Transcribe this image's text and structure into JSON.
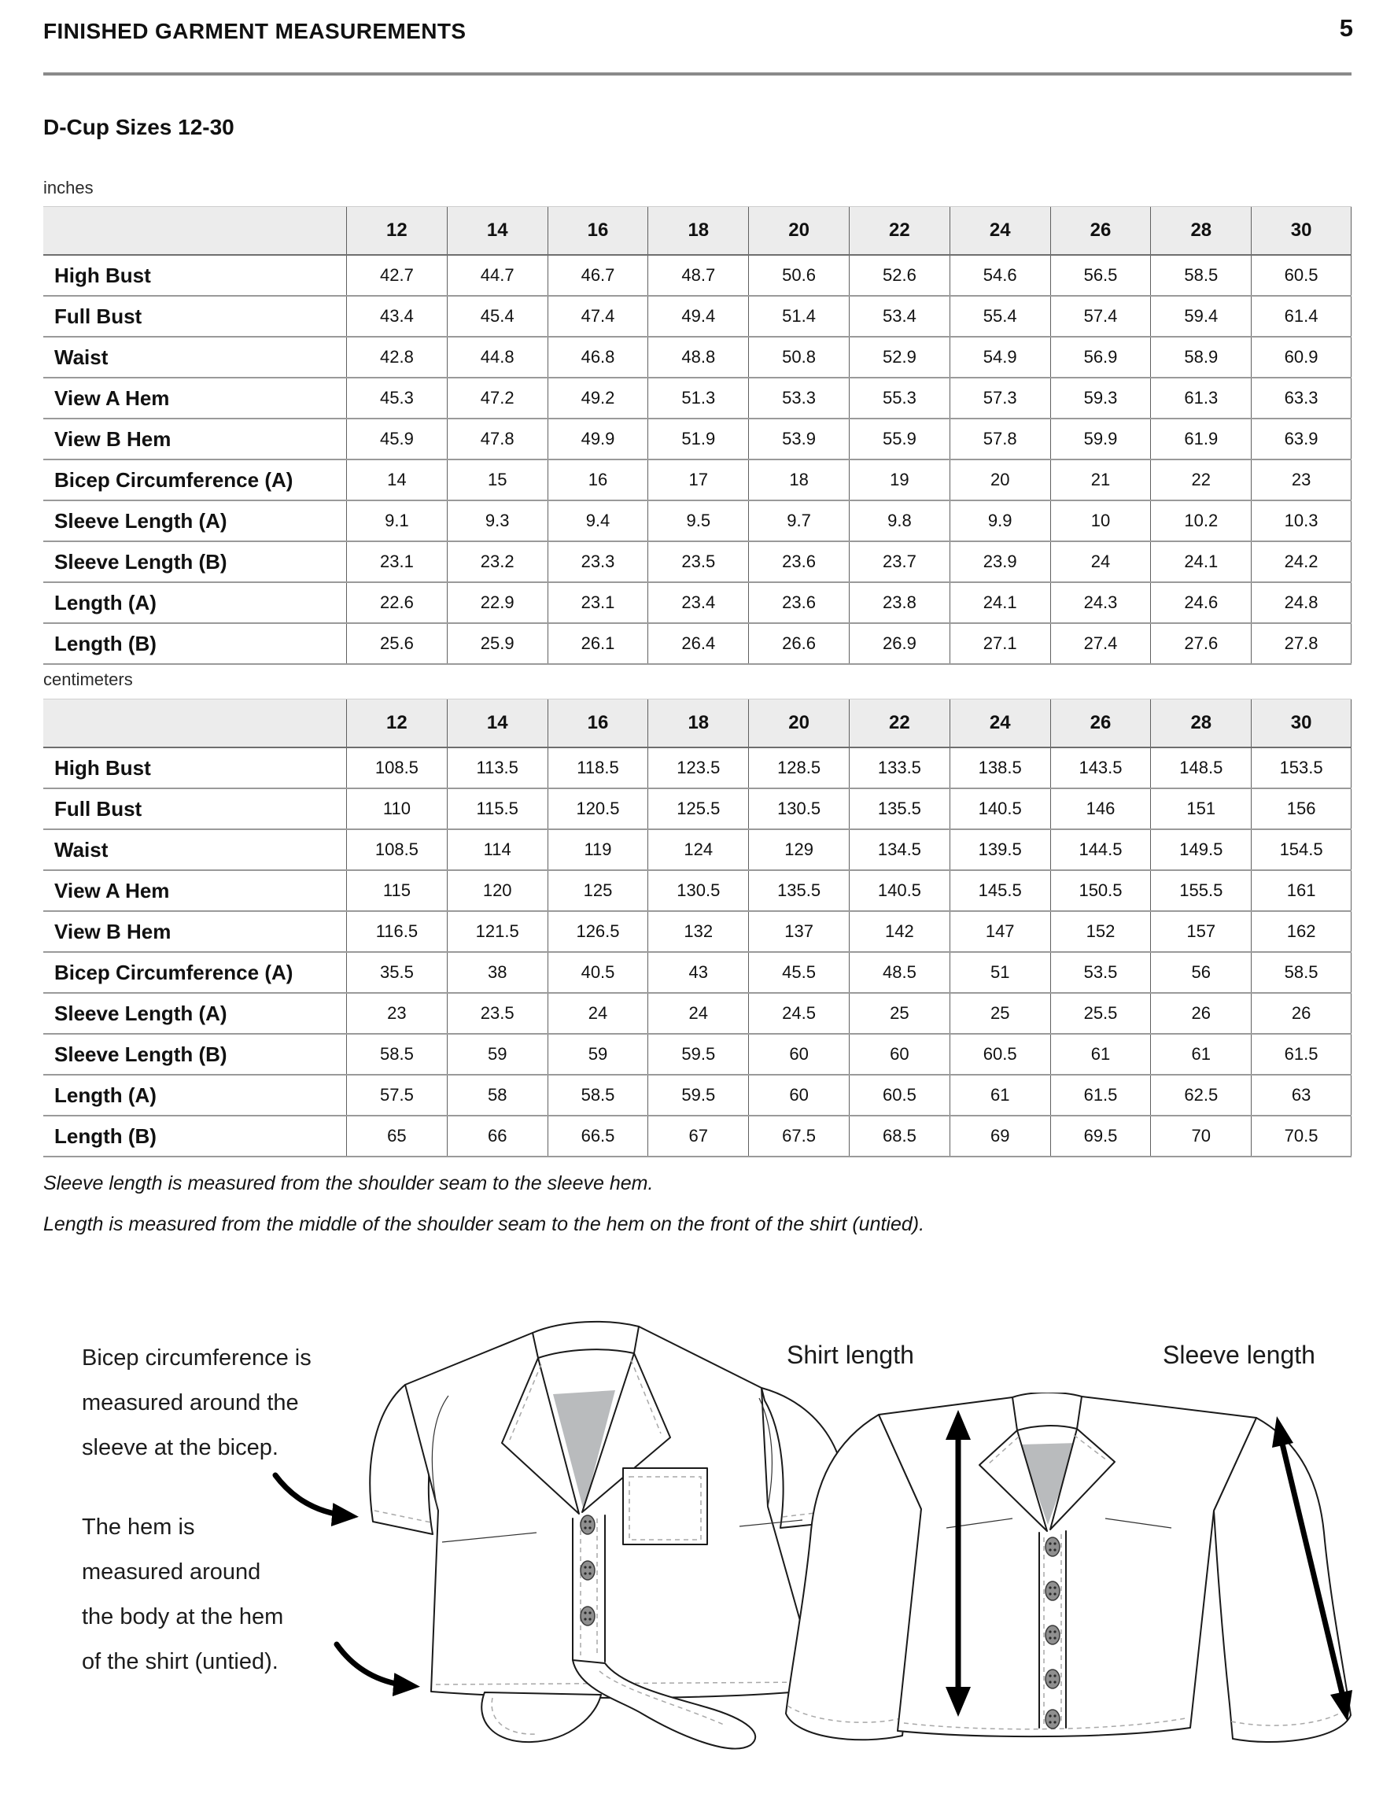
{
  "page": {
    "title": "FINISHED GARMENT MEASUREMENTS",
    "page_number": "5",
    "section_title": "D-Cup Sizes 12-30"
  },
  "tables": [
    {
      "unit_label": "inches",
      "sizes": [
        "12",
        "14",
        "16",
        "18",
        "20",
        "22",
        "24",
        "26",
        "28",
        "30"
      ],
      "rows": [
        {
          "label": "High Bust",
          "values": [
            "42.7",
            "44.7",
            "46.7",
            "48.7",
            "50.6",
            "52.6",
            "54.6",
            "56.5",
            "58.5",
            "60.5"
          ]
        },
        {
          "label": "Full Bust",
          "values": [
            "43.4",
            "45.4",
            "47.4",
            "49.4",
            "51.4",
            "53.4",
            "55.4",
            "57.4",
            "59.4",
            "61.4"
          ]
        },
        {
          "label": "Waist",
          "values": [
            "42.8",
            "44.8",
            "46.8",
            "48.8",
            "50.8",
            "52.9",
            "54.9",
            "56.9",
            "58.9",
            "60.9"
          ]
        },
        {
          "label": "View A Hem",
          "values": [
            "45.3",
            "47.2",
            "49.2",
            "51.3",
            "53.3",
            "55.3",
            "57.3",
            "59.3",
            "61.3",
            "63.3"
          ]
        },
        {
          "label": "View B Hem",
          "values": [
            "45.9",
            "47.8",
            "49.9",
            "51.9",
            "53.9",
            "55.9",
            "57.8",
            "59.9",
            "61.9",
            "63.9"
          ]
        },
        {
          "label": "Bicep Circumference (A)",
          "values": [
            "14",
            "15",
            "16",
            "17",
            "18",
            "19",
            "20",
            "21",
            "22",
            "23"
          ]
        },
        {
          "label": "Sleeve Length (A)",
          "values": [
            "9.1",
            "9.3",
            "9.4",
            "9.5",
            "9.7",
            "9.8",
            "9.9",
            "10",
            "10.2",
            "10.3"
          ]
        },
        {
          "label": "Sleeve Length (B)",
          "values": [
            "23.1",
            "23.2",
            "23.3",
            "23.5",
            "23.6",
            "23.7",
            "23.9",
            "24",
            "24.1",
            "24.2"
          ]
        },
        {
          "label": "Length (A)",
          "values": [
            "22.6",
            "22.9",
            "23.1",
            "23.4",
            "23.6",
            "23.8",
            "24.1",
            "24.3",
            "24.6",
            "24.8"
          ]
        },
        {
          "label": "Length (B)",
          "values": [
            "25.6",
            "25.9",
            "26.1",
            "26.4",
            "26.6",
            "26.9",
            "27.1",
            "27.4",
            "27.6",
            "27.8"
          ]
        }
      ]
    },
    {
      "unit_label": "centimeters",
      "sizes": [
        "12",
        "14",
        "16",
        "18",
        "20",
        "22",
        "24",
        "26",
        "28",
        "30"
      ],
      "rows": [
        {
          "label": "High Bust",
          "values": [
            "108.5",
            "113.5",
            "118.5",
            "123.5",
            "128.5",
            "133.5",
            "138.5",
            "143.5",
            "148.5",
            "153.5"
          ]
        },
        {
          "label": "Full Bust",
          "values": [
            "110",
            "115.5",
            "120.5",
            "125.5",
            "130.5",
            "135.5",
            "140.5",
            "146",
            "151",
            "156"
          ]
        },
        {
          "label": "Waist",
          "values": [
            "108.5",
            "114",
            "119",
            "124",
            "129",
            "134.5",
            "139.5",
            "144.5",
            "149.5",
            "154.5"
          ]
        },
        {
          "label": "View A Hem",
          "values": [
            "115",
            "120",
            "125",
            "130.5",
            "135.5",
            "140.5",
            "145.5",
            "150.5",
            "155.5",
            "161"
          ]
        },
        {
          "label": "View B Hem",
          "values": [
            "116.5",
            "121.5",
            "126.5",
            "132",
            "137",
            "142",
            "147",
            "152",
            "157",
            "162"
          ]
        },
        {
          "label": "Bicep Circumference (A)",
          "values": [
            "35.5",
            "38",
            "40.5",
            "43",
            "45.5",
            "48.5",
            "51",
            "53.5",
            "56",
            "58.5"
          ]
        },
        {
          "label": "Sleeve Length (A)",
          "values": [
            "23",
            "23.5",
            "24",
            "24",
            "24.5",
            "25",
            "25",
            "25.5",
            "26",
            "26"
          ]
        },
        {
          "label": "Sleeve Length (B)",
          "values": [
            "58.5",
            "59",
            "59",
            "59.5",
            "60",
            "60",
            "60.5",
            "61",
            "61",
            "61.5"
          ]
        },
        {
          "label": "Length (A)",
          "values": [
            "57.5",
            "58",
            "58.5",
            "59.5",
            "60",
            "60.5",
            "61",
            "61.5",
            "62.5",
            "63"
          ]
        },
        {
          "label": "Length (B)",
          "values": [
            "65",
            "66",
            "66.5",
            "67",
            "67.5",
            "68.5",
            "69",
            "69.5",
            "70",
            "70.5"
          ]
        }
      ]
    }
  ],
  "notes": [
    "Sleeve length is measured from the shoulder seam to the sleeve hem.",
    "Length is measured from the middle of the shoulder seam to the hem on the front of the shirt (untied)."
  ],
  "figure": {
    "bicep_note": "Bicep circumference is\nmeasured around the\nsleeve at the bicep.",
    "hem_note": "The hem is\nmeasured around\nthe body at the hem\nof the shirt (untied).",
    "shirt_length_label": "Shirt length",
    "sleeve_length_label": "Sleeve length"
  }
}
